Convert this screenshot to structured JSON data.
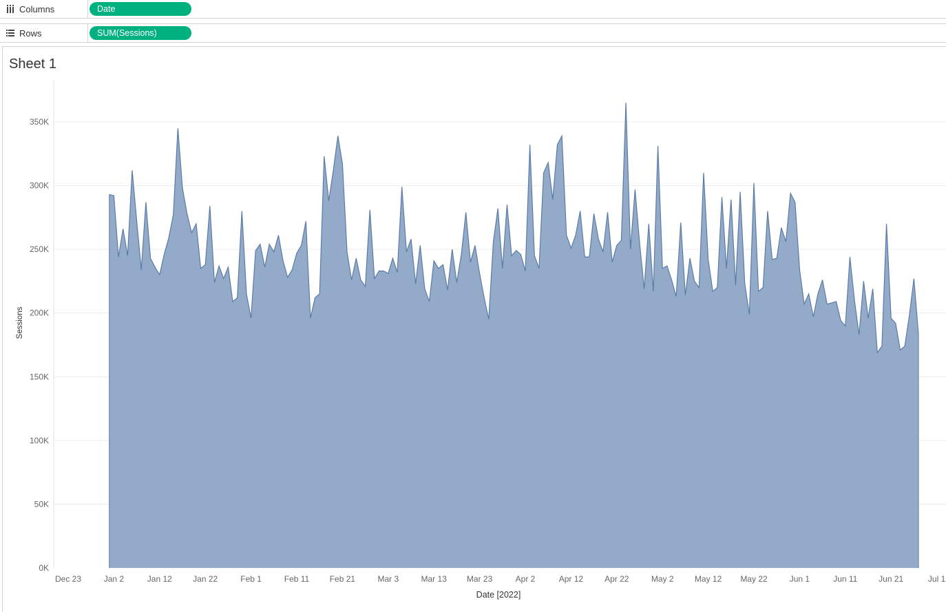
{
  "shelves": {
    "columns": {
      "label": "Columns",
      "icon": "columns-icon",
      "pill": "Date"
    },
    "rows": {
      "label": "Rows",
      "icon": "rows-icon",
      "pill": "SUM(Sessions)"
    }
  },
  "sheet": {
    "title": "Sheet 1"
  },
  "colors": {
    "area_fill": "#93abc8",
    "area_stroke": "#5a7ba5",
    "pill": "#00b180"
  },
  "chart_data": {
    "type": "area",
    "title": "",
    "xlabel": "Date [2022]",
    "ylabel": "Sessions",
    "ylim": [
      0,
      375000
    ],
    "xlim": [
      "2021-12-20",
      "2022-07-04"
    ],
    "grid": "horizontal",
    "x_ticks": [
      "Dec 23",
      "Jan 2",
      "Jan 12",
      "Jan 22",
      "Feb 1",
      "Feb 11",
      "Feb 21",
      "Mar 3",
      "Mar 13",
      "Mar 23",
      "Apr 2",
      "Apr 12",
      "Apr 22",
      "May 2",
      "May 12",
      "May 22",
      "Jun 1",
      "Jun 11",
      "Jun 21",
      "Jul 1"
    ],
    "y_ticks": [
      "0K",
      "50K",
      "100K",
      "150K",
      "200K",
      "250K",
      "300K",
      "350K"
    ],
    "series": [
      {
        "start_date": "2022-01-01",
        "values": [
          293000,
          292000,
          244000,
          266000,
          245000,
          312000,
          272000,
          234000,
          287000,
          243000,
          236000,
          230000,
          246000,
          259000,
          277000,
          345000,
          298000,
          278000,
          263000,
          270000,
          235000,
          238000,
          284000,
          224000,
          237000,
          227000,
          236000,
          209000,
          212000,
          280000,
          215000,
          196000,
          249000,
          254000,
          236000,
          254000,
          248000,
          261000,
          241000,
          228000,
          234000,
          247000,
          253000,
          272000,
          196000,
          212000,
          215000,
          323000,
          288000,
          312000,
          339000,
          317000,
          248000,
          226000,
          243000,
          226000,
          221000,
          281000,
          227000,
          233000,
          233000,
          231000,
          243000,
          232000,
          299000,
          248000,
          258000,
          223000,
          253000,
          219000,
          209000,
          241000,
          235000,
          238000,
          218000,
          250000,
          224000,
          246000,
          279000,
          240000,
          253000,
          231000,
          212000,
          195000,
          256000,
          282000,
          235000,
          285000,
          245000,
          249000,
          246000,
          233000,
          332000,
          245000,
          235000,
          310000,
          318000,
          289000,
          332000,
          339000,
          261000,
          251000,
          261000,
          280000,
          244000,
          244000,
          278000,
          258000,
          248000,
          279000,
          240000,
          253000,
          257000,
          365000,
          250000,
          297000,
          255000,
          219000,
          270000,
          217000,
          331000,
          235000,
          237000,
          226000,
          213000,
          271000,
          214000,
          243000,
          225000,
          220000,
          310000,
          242000,
          217000,
          220000,
          291000,
          235000,
          289000,
          222000,
          295000,
          223000,
          199000,
          302000,
          217000,
          220000,
          280000,
          242000,
          243000,
          267000,
          256000,
          294000,
          287000,
          234000,
          207000,
          215000,
          197000,
          215000,
          226000,
          207000,
          208000,
          209000,
          194000,
          190000,
          244000,
          210000,
          183000,
          225000,
          196000,
          219000,
          169000,
          174000,
          270000,
          196000,
          192000,
          171000,
          174000,
          198000,
          227000,
          183000
        ]
      }
    ]
  }
}
